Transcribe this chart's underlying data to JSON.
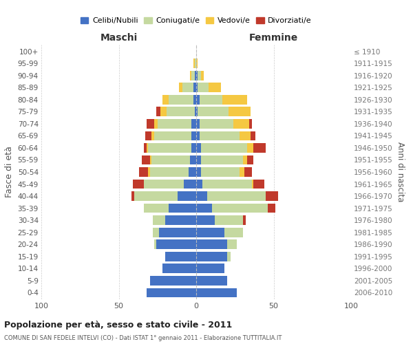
{
  "age_groups": [
    "0-4",
    "5-9",
    "10-14",
    "15-19",
    "20-24",
    "25-29",
    "30-34",
    "35-39",
    "40-44",
    "45-49",
    "50-54",
    "55-59",
    "60-64",
    "65-69",
    "70-74",
    "75-79",
    "80-84",
    "85-89",
    "90-94",
    "95-99",
    "100+"
  ],
  "birth_years": [
    "2006-2010",
    "2001-2005",
    "1996-2000",
    "1991-1995",
    "1986-1990",
    "1981-1985",
    "1976-1980",
    "1971-1975",
    "1966-1970",
    "1961-1965",
    "1956-1960",
    "1951-1955",
    "1946-1950",
    "1941-1945",
    "1936-1940",
    "1931-1935",
    "1926-1930",
    "1921-1925",
    "1916-1920",
    "1911-1915",
    "≤ 1910"
  ],
  "colors": {
    "celibe": "#4472c4",
    "coniugato": "#c5d9a0",
    "vedovo": "#f5c842",
    "divorziato": "#c0392b"
  },
  "maschi": {
    "celibe": [
      32,
      30,
      22,
      20,
      26,
      24,
      20,
      18,
      12,
      8,
      5,
      4,
      3,
      3,
      3,
      1,
      2,
      2,
      1,
      0,
      0
    ],
    "coniugato": [
      0,
      0,
      0,
      0,
      1,
      4,
      8,
      16,
      28,
      26,
      25,
      25,
      28,
      24,
      22,
      18,
      16,
      7,
      2,
      1,
      0
    ],
    "vedovo": [
      0,
      0,
      0,
      0,
      0,
      0,
      0,
      0,
      0,
      0,
      1,
      1,
      1,
      2,
      2,
      4,
      4,
      2,
      1,
      1,
      0
    ],
    "divorziato": [
      0,
      0,
      0,
      0,
      0,
      0,
      0,
      0,
      2,
      7,
      6,
      5,
      2,
      4,
      5,
      3,
      0,
      0,
      0,
      0,
      0
    ]
  },
  "femmine": {
    "nubile": [
      26,
      20,
      18,
      20,
      20,
      18,
      12,
      10,
      7,
      4,
      3,
      3,
      3,
      2,
      2,
      1,
      2,
      1,
      1,
      0,
      0
    ],
    "coniugata": [
      0,
      0,
      0,
      2,
      6,
      12,
      18,
      36,
      38,
      32,
      25,
      27,
      30,
      26,
      22,
      20,
      15,
      7,
      2,
      0,
      0
    ],
    "vedova": [
      0,
      0,
      0,
      0,
      0,
      0,
      0,
      0,
      0,
      1,
      3,
      3,
      4,
      7,
      10,
      14,
      16,
      8,
      2,
      1,
      0
    ],
    "divorziata": [
      0,
      0,
      0,
      0,
      0,
      0,
      2,
      5,
      8,
      7,
      5,
      4,
      8,
      3,
      2,
      0,
      0,
      0,
      0,
      0,
      0
    ]
  },
  "title": "Popolazione per età, sesso e stato civile - 2011",
  "subtitle": "COMUNE DI SAN FEDELE INTELVI (CO) - Dati ISTAT 1° gennaio 2011 - Elaborazione TUTTITALIA.IT",
  "xlabel_left": "Maschi",
  "xlabel_right": "Femmine",
  "ylabel_left": "Fasce di età",
  "ylabel_right": "Anni di nascita",
  "legend_labels": [
    "Celibi/Nubili",
    "Coniugati/e",
    "Vedovi/e",
    "Divorziati/e"
  ],
  "xlim": 100,
  "background_color": "#ffffff",
  "grid_color": "#cccccc"
}
